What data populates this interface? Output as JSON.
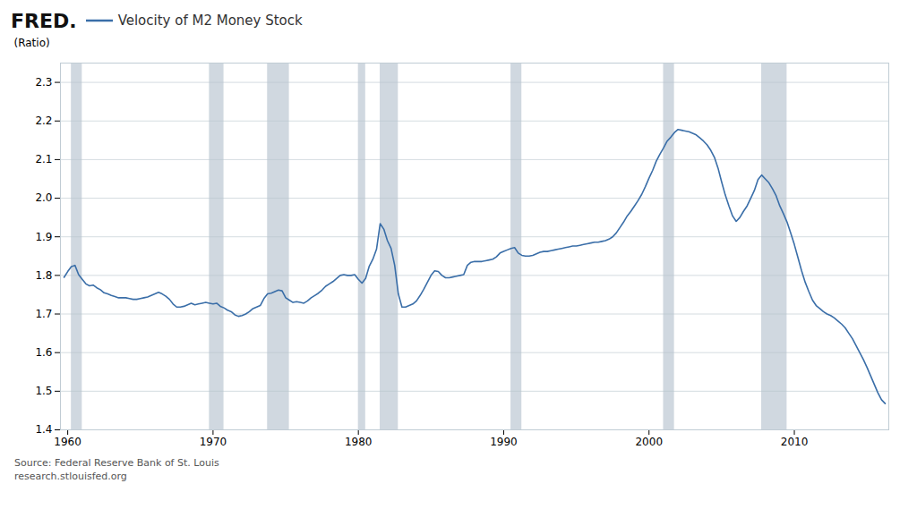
{
  "chart_data": {
    "type": "line",
    "title": "Velocity of M2 Money Stock",
    "ylabel": "(Ratio)",
    "color": "#3a6ea8",
    "grid": true,
    "annotations": [
      "FRED.",
      "Source: Federal Reserve Bank of St. Louis",
      "research.stlouisfed.org"
    ],
    "xlim": [
      1959.5,
      2016.5
    ],
    "xticks": [
      1960,
      1970,
      1980,
      1990,
      2000,
      2010
    ],
    "ylim": [
      1.4,
      2.35
    ],
    "yticks": [
      1.4,
      1.5,
      1.6,
      1.7,
      1.8,
      1.9,
      {
        "value": 2.0,
        "label": "2.0"
      },
      2.1,
      2.2,
      2.3
    ],
    "recession_bands": [
      [
        1960.25,
        1961.0
      ],
      [
        1969.75,
        1970.75
      ],
      [
        1973.75,
        1975.25
      ],
      [
        1980.0,
        1980.5
      ],
      [
        1981.5,
        1982.75
      ],
      [
        1990.5,
        1991.25
      ],
      [
        2001.0,
        2001.75
      ],
      [
        2007.75,
        2009.5
      ]
    ],
    "x": [
      1959.75,
      1960.0,
      1960.25,
      1960.5,
      1960.75,
      1961.0,
      1961.25,
      1961.5,
      1961.75,
      1962.0,
      1962.25,
      1962.5,
      1962.75,
      1963.0,
      1963.25,
      1963.5,
      1963.75,
      1964.0,
      1964.25,
      1964.5,
      1964.75,
      1965.0,
      1965.25,
      1965.5,
      1965.75,
      1966.0,
      1966.25,
      1966.5,
      1966.75,
      1967.0,
      1967.25,
      1967.5,
      1967.75,
      1968.0,
      1968.25,
      1968.5,
      1968.75,
      1969.0,
      1969.25,
      1969.5,
      1969.75,
      1970.0,
      1970.25,
      1970.5,
      1970.75,
      1971.0,
      1971.25,
      1971.5,
      1971.75,
      1972.0,
      1972.25,
      1972.5,
      1972.75,
      1973.0,
      1973.25,
      1973.5,
      1973.75,
      1974.0,
      1974.25,
      1974.5,
      1974.75,
      1975.0,
      1975.25,
      1975.5,
      1975.75,
      1976.0,
      1976.25,
      1976.5,
      1976.75,
      1977.0,
      1977.25,
      1977.5,
      1977.75,
      1978.0,
      1978.25,
      1978.5,
      1978.75,
      1979.0,
      1979.25,
      1979.5,
      1979.75,
      1980.0,
      1980.25,
      1980.5,
      1980.75,
      1981.0,
      1981.25,
      1981.5,
      1981.75,
      1982.0,
      1982.25,
      1982.5,
      1982.75,
      1983.0,
      1983.25,
      1983.5,
      1983.75,
      1984.0,
      1984.25,
      1984.5,
      1984.75,
      1985.0,
      1985.25,
      1985.5,
      1985.75,
      1986.0,
      1986.25,
      1986.5,
      1986.75,
      1987.0,
      1987.25,
      1987.5,
      1987.75,
      1988.0,
      1988.25,
      1988.5,
      1988.75,
      1989.0,
      1989.25,
      1989.5,
      1989.75,
      1990.0,
      1990.25,
      1990.5,
      1990.75,
      1991.0,
      1991.25,
      1991.5,
      1991.75,
      1992.0,
      1992.25,
      1992.5,
      1992.75,
      1993.0,
      1993.25,
      1993.5,
      1993.75,
      1994.0,
      1994.25,
      1994.5,
      1994.75,
      1995.0,
      1995.25,
      1995.5,
      1995.75,
      1996.0,
      1996.25,
      1996.5,
      1996.75,
      1997.0,
      1997.25,
      1997.5,
      1997.75,
      1998.0,
      1998.25,
      1998.5,
      1998.75,
      1999.0,
      1999.25,
      1999.5,
      1999.75,
      2000.0,
      2000.25,
      2000.5,
      2000.75,
      2001.0,
      2001.25,
      2001.5,
      2001.75,
      2002.0,
      2002.25,
      2002.5,
      2002.75,
      2003.0,
      2003.25,
      2003.5,
      2003.75,
      2004.0,
      2004.25,
      2004.5,
      2004.75,
      2005.0,
      2005.25,
      2005.5,
      2005.75,
      2006.0,
      2006.25,
      2006.5,
      2006.75,
      2007.0,
      2007.25,
      2007.5,
      2007.75,
      2008.0,
      2008.25,
      2008.5,
      2008.75,
      2009.0,
      2009.25,
      2009.5,
      2009.75,
      2010.0,
      2010.25,
      2010.5,
      2010.75,
      2011.0,
      2011.25,
      2011.5,
      2011.75,
      2012.0,
      2012.25,
      2012.5,
      2012.75,
      2013.0,
      2013.25,
      2013.5,
      2013.75,
      2014.0,
      2014.25,
      2014.5,
      2014.75,
      2015.0,
      2015.25,
      2015.5,
      2015.75,
      2016.0,
      2016.25
    ],
    "values": [
      1.795,
      1.81,
      1.823,
      1.826,
      1.802,
      1.79,
      1.778,
      1.773,
      1.775,
      1.768,
      1.763,
      1.755,
      1.752,
      1.748,
      1.745,
      1.742,
      1.742,
      1.742,
      1.74,
      1.738,
      1.738,
      1.74,
      1.742,
      1.744,
      1.748,
      1.752,
      1.756,
      1.752,
      1.746,
      1.738,
      1.726,
      1.718,
      1.718,
      1.72,
      1.724,
      1.728,
      1.724,
      1.726,
      1.728,
      1.73,
      1.728,
      1.726,
      1.728,
      1.72,
      1.716,
      1.71,
      1.706,
      1.698,
      1.694,
      1.696,
      1.7,
      1.706,
      1.714,
      1.718,
      1.722,
      1.74,
      1.752,
      1.754,
      1.758,
      1.762,
      1.76,
      1.742,
      1.736,
      1.73,
      1.732,
      1.73,
      1.728,
      1.734,
      1.742,
      1.748,
      1.754,
      1.762,
      1.772,
      1.778,
      1.784,
      1.792,
      1.8,
      1.802,
      1.8,
      1.8,
      1.802,
      1.79,
      1.78,
      1.792,
      1.824,
      1.842,
      1.868,
      1.934,
      1.92,
      1.89,
      1.87,
      1.826,
      1.752,
      1.718,
      1.718,
      1.722,
      1.726,
      1.734,
      1.748,
      1.764,
      1.782,
      1.8,
      1.812,
      1.81,
      1.8,
      1.794,
      1.794,
      1.796,
      1.798,
      1.8,
      1.802,
      1.826,
      1.834,
      1.836,
      1.836,
      1.836,
      1.838,
      1.84,
      1.842,
      1.848,
      1.858,
      1.862,
      1.866,
      1.87,
      1.872,
      1.858,
      1.852,
      1.85,
      1.85,
      1.852,
      1.856,
      1.86,
      1.862,
      1.862,
      1.864,
      1.866,
      1.868,
      1.87,
      1.872,
      1.874,
      1.876,
      1.876,
      1.878,
      1.88,
      1.882,
      1.884,
      1.886,
      1.886,
      1.888,
      1.89,
      1.894,
      1.9,
      1.91,
      1.924,
      1.938,
      1.954,
      1.966,
      1.98,
      1.994,
      2.01,
      2.03,
      2.052,
      2.072,
      2.096,
      2.114,
      2.13,
      2.148,
      2.158,
      2.17,
      2.178,
      2.176,
      2.174,
      2.172,
      2.168,
      2.164,
      2.156,
      2.148,
      2.138,
      2.124,
      2.106,
      2.078,
      2.042,
      2.008,
      1.98,
      1.954,
      1.94,
      1.95,
      1.966,
      1.98,
      2.0,
      2.02,
      2.048,
      2.06,
      2.05,
      2.04,
      2.024,
      2.006,
      1.98,
      1.96,
      1.938,
      1.91,
      1.88,
      1.846,
      1.812,
      1.782,
      1.758,
      1.736,
      1.722,
      1.714,
      1.706,
      1.7,
      1.696,
      1.69,
      1.682,
      1.674,
      1.664,
      1.65,
      1.636,
      1.618,
      1.6,
      1.582,
      1.562,
      1.54,
      1.518,
      1.496,
      1.478,
      1.468
    ]
  }
}
